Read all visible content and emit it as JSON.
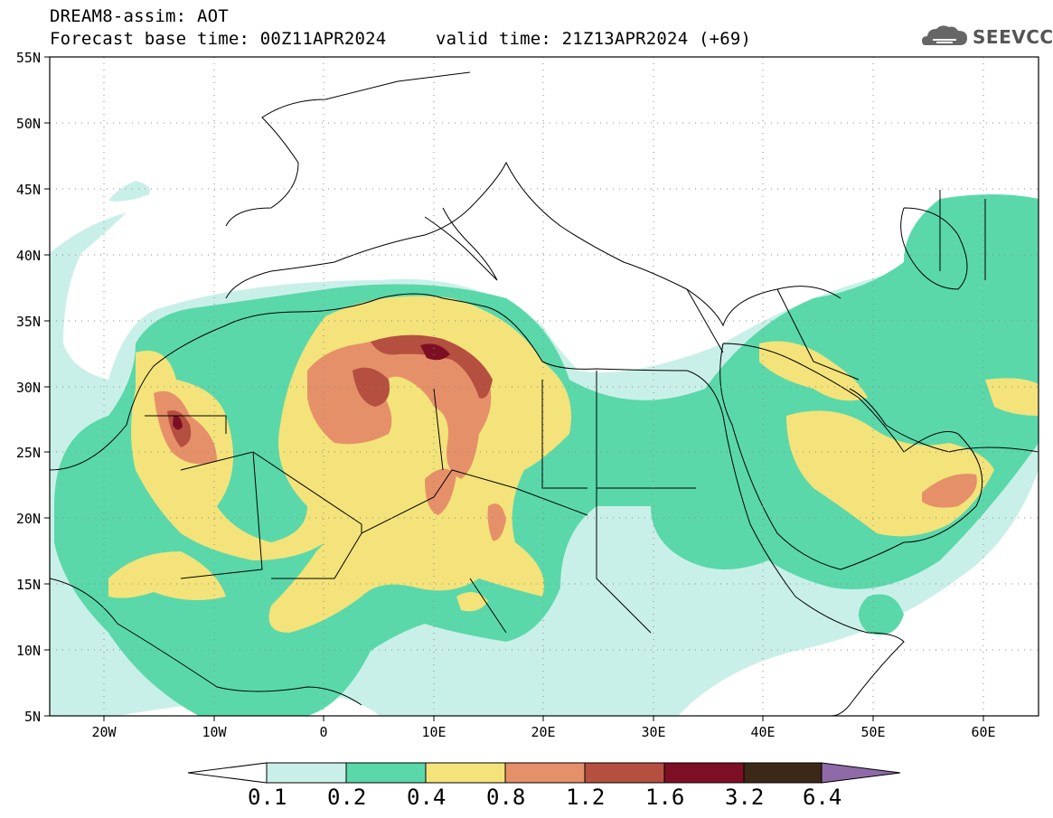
{
  "header": {
    "line1": "DREAM8-assim: AOT",
    "line2": "Forecast base time: 00Z11APR2024",
    "valid": "valid time: 21Z13APR2024 (+69)"
  },
  "logo": {
    "text": "SEEVCCC",
    "icon": "cloud-icon"
  },
  "map": {
    "lon_range": [
      -25,
      65
    ],
    "lat_range": [
      5,
      55
    ],
    "lat_labels": [
      "55N",
      "50N",
      "45N",
      "40N",
      "35N",
      "30N",
      "25N",
      "20N",
      "15N",
      "10N",
      "5N"
    ],
    "lon_labels": [
      "20W",
      "10W",
      "0",
      "10E",
      "20E",
      "30E",
      "40E",
      "50E",
      "60E"
    ],
    "grid": "dotted"
  },
  "colorbar": {
    "levels": [
      "0.1",
      "0.2",
      "0.4",
      "0.8",
      "1.2",
      "1.6",
      "3.2",
      "6.4"
    ],
    "colors": [
      "#c9f0e8",
      "#5ad8aa",
      "#f3e37a",
      "#e6906a",
      "#b54f40",
      "#7d0f24",
      "#3c2816",
      "#8f6aa8"
    ]
  }
}
